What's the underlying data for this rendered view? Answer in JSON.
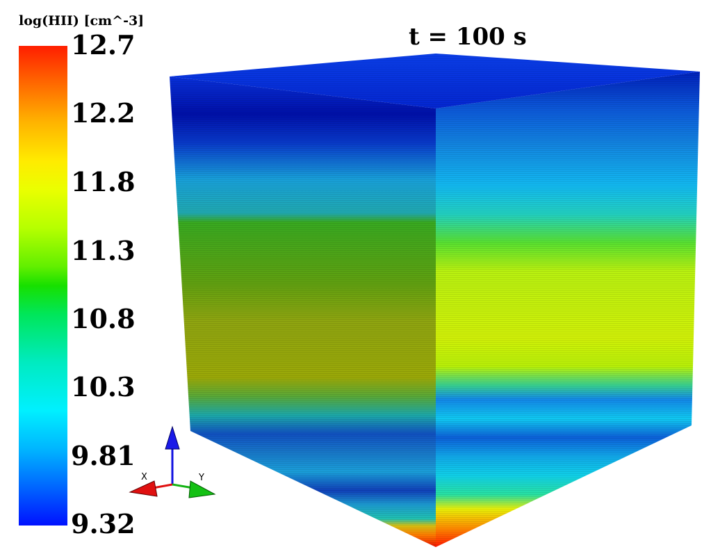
{
  "legend": {
    "title": "log(HII) [cm^-3]",
    "ticks": [
      "12.7",
      "12.2",
      "11.8",
      "11.3",
      "10.8",
      "10.3",
      "9.81",
      "9.32"
    ]
  },
  "time_label": "t = 100 s",
  "axes_triad": {
    "x_label": "X",
    "y_label": "Y",
    "colors": {
      "x": "#e01010",
      "y": "#14b414",
      "z": "#1010e0"
    }
  },
  "colors": {
    "max": "#ff1e00",
    "min": "#0011ff"
  }
}
